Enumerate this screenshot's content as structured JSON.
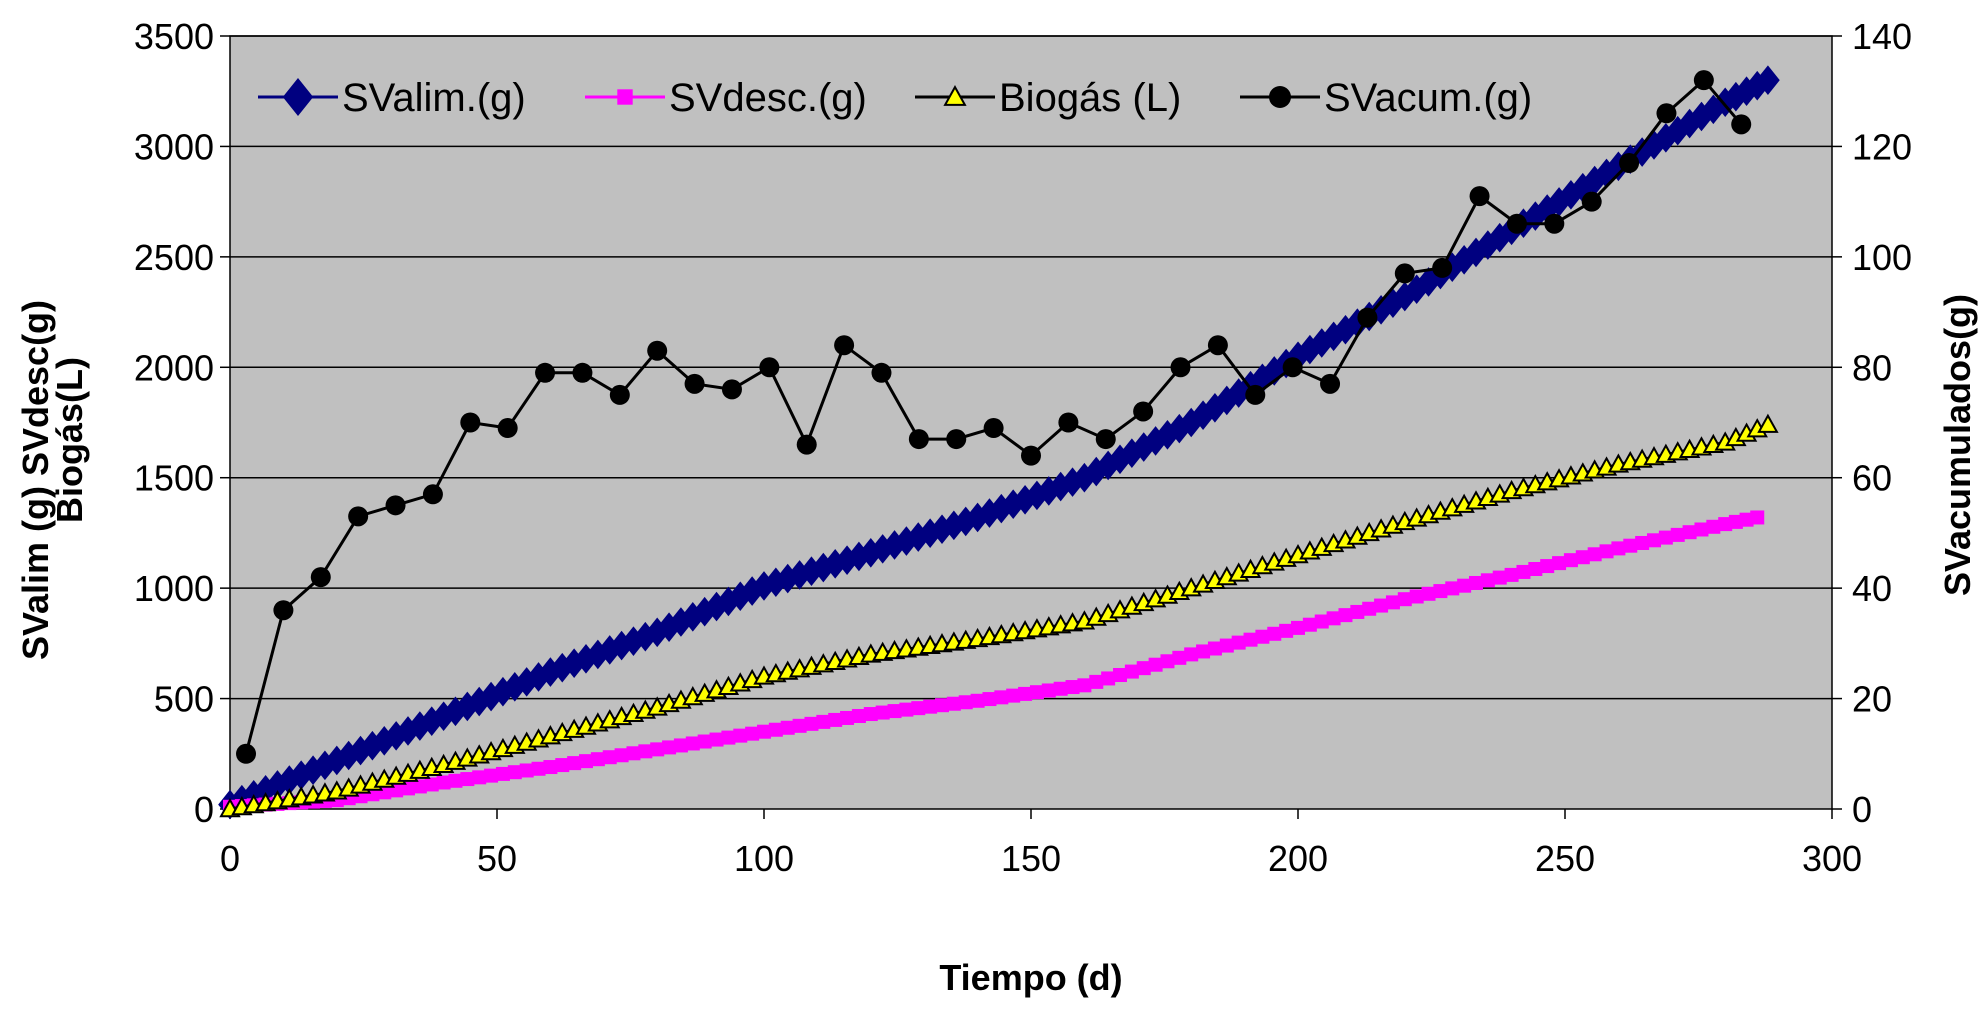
{
  "chart_data": {
    "type": "line",
    "xlabel": "Tiempo (d)",
    "ylabel_left_line1": "SValim (g)  SVdesc(g)",
    "ylabel_left_line2": "Biogás(L)",
    "ylabel_right": "SVacumulados(g)",
    "xlim": [
      0,
      300
    ],
    "xticks": [
      "0",
      "50",
      "100",
      "150",
      "200",
      "250",
      "300"
    ],
    "ylim_left": [
      0,
      3500
    ],
    "yticks_left": [
      "0",
      "500",
      "1000",
      "1500",
      "2000",
      "2500",
      "3000",
      "3500"
    ],
    "ylim_right": [
      0,
      140
    ],
    "yticks_right": [
      "0",
      "20",
      "40",
      "60",
      "80",
      "100",
      "120",
      "140"
    ],
    "grid": "horizontal",
    "legend_position": "top",
    "plot_background": "#C0C0C0",
    "series": [
      {
        "name": "SValim.(g)",
        "axis": "left",
        "color": "#000080",
        "marker": "diamond",
        "x": [
          0,
          20,
          40,
          60,
          80,
          100,
          120,
          140,
          160,
          180,
          200,
          220,
          240,
          260,
          280,
          288
        ],
        "y": [
          20,
          220,
          420,
          620,
          800,
          1010,
          1160,
          1320,
          1500,
          1750,
          2050,
          2320,
          2620,
          2910,
          3200,
          3300
        ]
      },
      {
        "name": "SVdesc.(g)",
        "axis": "left",
        "color": "#FF00FF",
        "marker": "square",
        "x": [
          0,
          20,
          40,
          60,
          80,
          100,
          120,
          140,
          160,
          180,
          200,
          220,
          240,
          260,
          280,
          286
        ],
        "y": [
          10,
          40,
          120,
          190,
          270,
          350,
          430,
          490,
          560,
          700,
          820,
          950,
          1060,
          1180,
          1290,
          1320
        ]
      },
      {
        "name": "Biogás (L)",
        "axis": "left",
        "color": "#000000",
        "marker": "triangle",
        "marker_fill": "#FFFF00",
        "x": [
          0,
          20,
          40,
          60,
          80,
          100,
          120,
          140,
          160,
          180,
          200,
          220,
          240,
          260,
          280,
          288
        ],
        "y": [
          0,
          80,
          200,
          330,
          460,
          600,
          700,
          770,
          850,
          1000,
          1150,
          1300,
          1440,
          1560,
          1660,
          1740
        ]
      },
      {
        "name": "SVacum.(g)",
        "axis": "right",
        "color": "#000000",
        "marker": "circle",
        "x": [
          3,
          10,
          17,
          24,
          31,
          38,
          45,
          52,
          59,
          66,
          73,
          80,
          87,
          94,
          101,
          108,
          115,
          122,
          129,
          136,
          143,
          150,
          157,
          164,
          171,
          178,
          185,
          192,
          199,
          206,
          213,
          220,
          227,
          234,
          241,
          248,
          255,
          262,
          269,
          276,
          283
        ],
        "y": [
          10,
          36,
          42,
          53,
          55,
          57,
          70,
          69,
          79,
          79,
          75,
          83,
          77,
          76,
          80,
          66,
          84,
          79,
          67,
          67,
          69,
          64,
          70,
          67,
          72,
          80,
          84,
          75,
          80,
          77,
          89,
          97,
          98,
          111,
          106,
          106,
          110,
          117,
          126,
          132,
          124
        ]
      }
    ]
  }
}
